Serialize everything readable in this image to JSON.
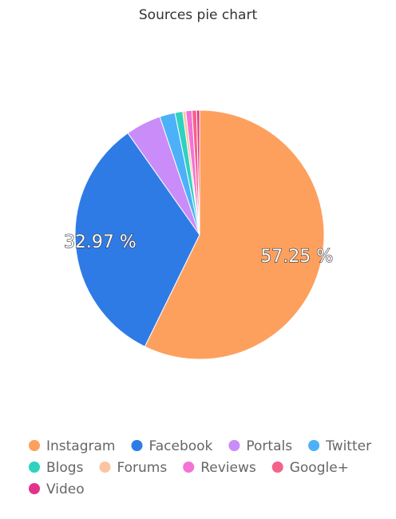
{
  "chart_data": {
    "type": "pie",
    "title": "Sources pie chart",
    "categories": [
      "Instagram",
      "Facebook",
      "Portals",
      "Twitter",
      "Blogs",
      "Forums",
      "Reviews",
      "Google+",
      "Video"
    ],
    "values": [
      57.25,
      32.97,
      4.6,
      2.0,
      1.0,
      0.4,
      0.8,
      0.6,
      0.38
    ],
    "value_labels": [
      "57.25 %",
      "32.97 %",
      null,
      null,
      null,
      null,
      null,
      null,
      null
    ],
    "colors": [
      "#fda05e",
      "#2f7be6",
      "#c98cf8",
      "#4cb1f8",
      "#2fd1c0",
      "#fcc4a0",
      "#f473d6",
      "#f46189",
      "#e2338a"
    ]
  }
}
